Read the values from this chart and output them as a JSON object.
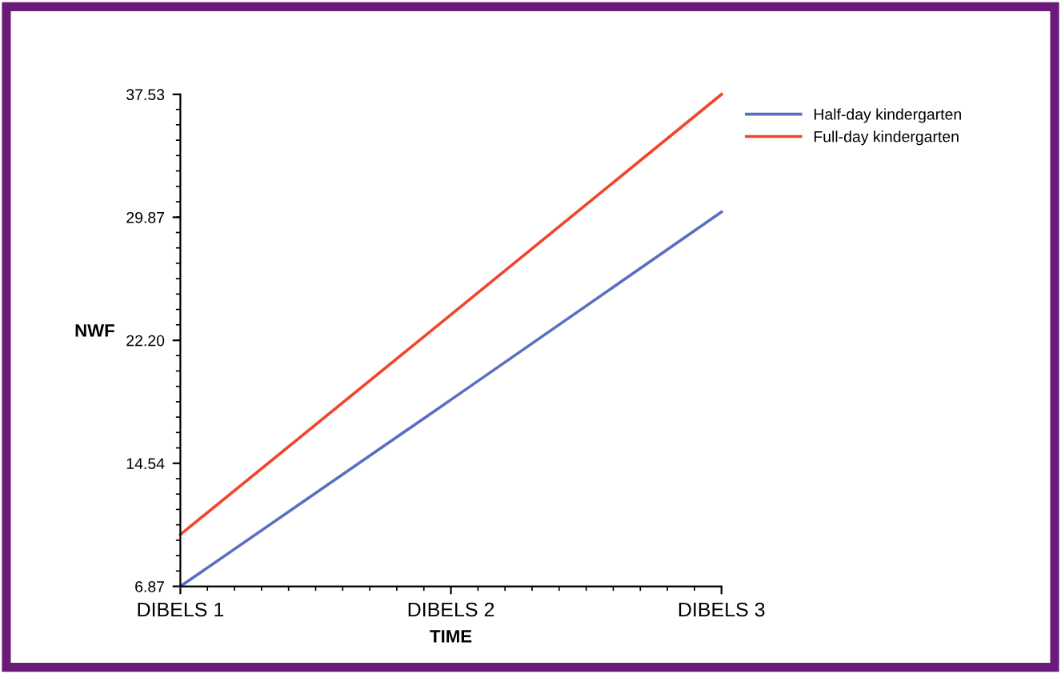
{
  "chart_data": {
    "type": "line",
    "xlabel": "TIME",
    "ylabel": "NWF",
    "categories": [
      "DIBELS 1",
      "DIBELS 2",
      "DIBELS 3"
    ],
    "series": [
      {
        "name": "Half-day kindergarten",
        "color": "#5b6fc0",
        "values": [
          6.87,
          18.5,
          30.2
        ]
      },
      {
        "name": "Full-day kindergarten",
        "color": "#f0462c",
        "values": [
          10.1,
          23.8,
          37.53
        ]
      }
    ],
    "ylim": [
      6.87,
      37.53
    ],
    "yticks": [
      6.87,
      14.54,
      {
        "value": 22.2,
        "label": "22.20"
      },
      29.87,
      37.53
    ],
    "grid": false,
    "legend": "top right",
    "marker": "none",
    "line_style": "solid"
  }
}
